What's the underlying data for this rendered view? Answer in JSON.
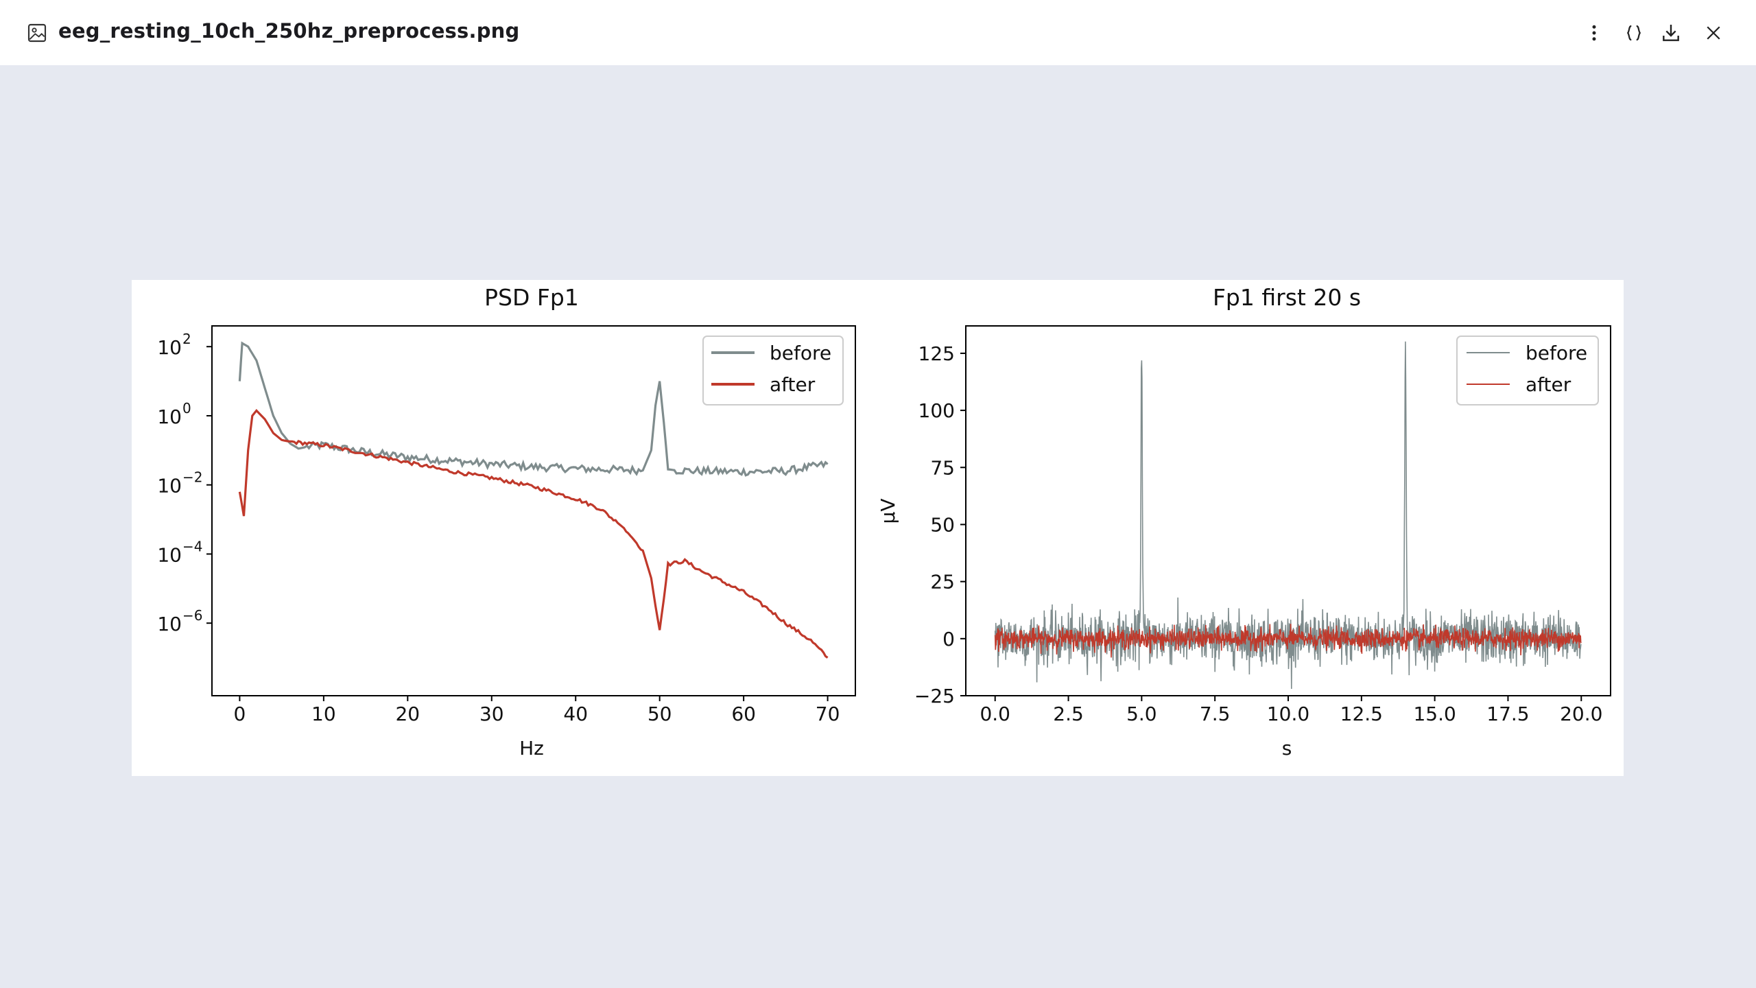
{
  "window": {
    "file_name": "eeg_resting_10ch_250hz_preprocess.png",
    "icons": [
      "image-file-icon",
      "more-vertical-icon",
      "json-braces-icon",
      "download-icon",
      "close-icon"
    ]
  },
  "colors": {
    "before": "#7f8c8d",
    "after": "#c0392b",
    "background": "#e6e9f1"
  },
  "chart_data": [
    {
      "type": "line",
      "title": "PSD Fp1",
      "xlabel": "Hz",
      "ylabel": "",
      "yscale": "log",
      "xlim": [
        -3.3,
        73.3
      ],
      "ylim_log10": [
        -8.1,
        2.6
      ],
      "xticks": [
        "0",
        "10",
        "20",
        "30",
        "40",
        "50",
        "60",
        "70"
      ],
      "yticks": [
        {
          "base": "10",
          "exp": "2"
        },
        {
          "base": "10",
          "exp": "0"
        },
        {
          "base": "10",
          "exp": "−2"
        },
        {
          "base": "10",
          "exp": "−4"
        },
        {
          "base": "10",
          "exp": "−6"
        }
      ],
      "legend": [
        "before",
        "after"
      ],
      "legend_position": "top-right",
      "series": [
        {
          "name": "before",
          "x": [
            0,
            0.3,
            1,
            2,
            3,
            4,
            5,
            6,
            7,
            8,
            10,
            15,
            20,
            25,
            30,
            35,
            40,
            45,
            48,
            49,
            49.5,
            50,
            50.5,
            51,
            52,
            55,
            60,
            65,
            70
          ],
          "log10": [
            1.0,
            2.1,
            2.0,
            1.6,
            0.8,
            0.0,
            -0.5,
            -0.8,
            -0.95,
            -0.9,
            -0.85,
            -1.05,
            -1.2,
            -1.3,
            -1.4,
            -1.48,
            -1.53,
            -1.56,
            -1.58,
            -1.0,
            0.3,
            1.0,
            -0.2,
            -1.55,
            -1.58,
            -1.6,
            -1.62,
            -1.6,
            -1.4
          ]
        },
        {
          "name": "after",
          "x": [
            0,
            0.5,
            1,
            1.5,
            2,
            3,
            4,
            5,
            6,
            8,
            10,
            15,
            20,
            25,
            30,
            35,
            40,
            43,
            45,
            46,
            48,
            49,
            49.5,
            50,
            50.5,
            51,
            53,
            55,
            60,
            63,
            65,
            68,
            70
          ],
          "log10": [
            -2.2,
            -2.9,
            -1.0,
            0.0,
            0.15,
            -0.1,
            -0.5,
            -0.7,
            -0.75,
            -0.8,
            -0.85,
            -1.1,
            -1.35,
            -1.6,
            -1.8,
            -2.05,
            -2.4,
            -2.7,
            -3.1,
            -3.3,
            -3.9,
            -4.7,
            -5.5,
            -6.2,
            -5.3,
            -4.3,
            -4.2,
            -4.5,
            -5.1,
            -5.6,
            -6.0,
            -6.5,
            -7.0
          ]
        }
      ]
    },
    {
      "type": "line",
      "title": "Fp1 first 20 s",
      "xlabel": "s",
      "ylabel": "µV",
      "xlim": [
        -1.0,
        21.0
      ],
      "ylim": [
        -25,
        137
      ],
      "xticks": [
        "0.0",
        "2.5",
        "5.0",
        "7.5",
        "10.0",
        "12.5",
        "15.0",
        "17.5",
        "20.0"
      ],
      "yticks": [
        "125",
        "100",
        "75",
        "50",
        "25",
        "0",
        "−25"
      ],
      "legend": [
        "before",
        "after"
      ],
      "legend_position": "top-right",
      "series": [
        {
          "name": "before",
          "noise_amplitude_uV": 10,
          "spikes": [
            {
              "t": 5.0,
              "peak_uV": 126
            },
            {
              "t": 14.0,
              "peak_uV": 129
            }
          ]
        },
        {
          "name": "after",
          "noise_amplitude_uV": 4,
          "spikes": []
        }
      ]
    }
  ]
}
